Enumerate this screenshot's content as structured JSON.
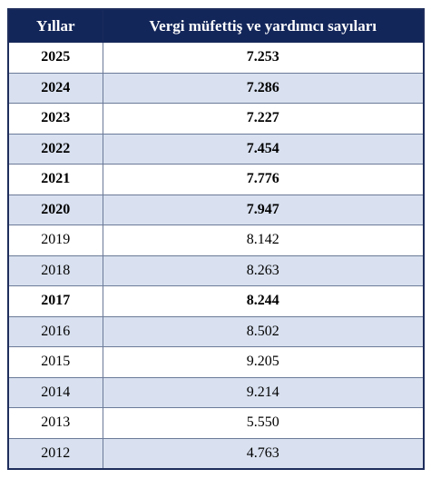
{
  "table": {
    "headers": {
      "year": "Yıllar",
      "count": "Vergi müfettiş ve yardımcı sayıları"
    },
    "rows": [
      {
        "year": "2025",
        "value": "7.253",
        "bold": true
      },
      {
        "year": "2024",
        "value": "7.286",
        "bold": true
      },
      {
        "year": "2023",
        "value": "7.227",
        "bold": true
      },
      {
        "year": "2022",
        "value": "7.454",
        "bold": true
      },
      {
        "year": "2021",
        "value": "7.776",
        "bold": true
      },
      {
        "year": "2020",
        "value": "7.947",
        "bold": true
      },
      {
        "year": "2019",
        "value": "8.142",
        "bold": false
      },
      {
        "year": "2018",
        "value": "8.263",
        "bold": false
      },
      {
        "year": "2017",
        "value": "8.244",
        "bold": true
      },
      {
        "year": "2016",
        "value": "8.502",
        "bold": false
      },
      {
        "year": "2015",
        "value": "9.205",
        "bold": false
      },
      {
        "year": "2014",
        "value": "9.214",
        "bold": false
      },
      {
        "year": "2013",
        "value": "5.550",
        "bold": false
      },
      {
        "year": "2012",
        "value": "4.763",
        "bold": false
      }
    ],
    "colors": {
      "header_bg": "#13265a",
      "shaded_row": "#d9e1f0",
      "white_row": "#ffffff"
    }
  }
}
